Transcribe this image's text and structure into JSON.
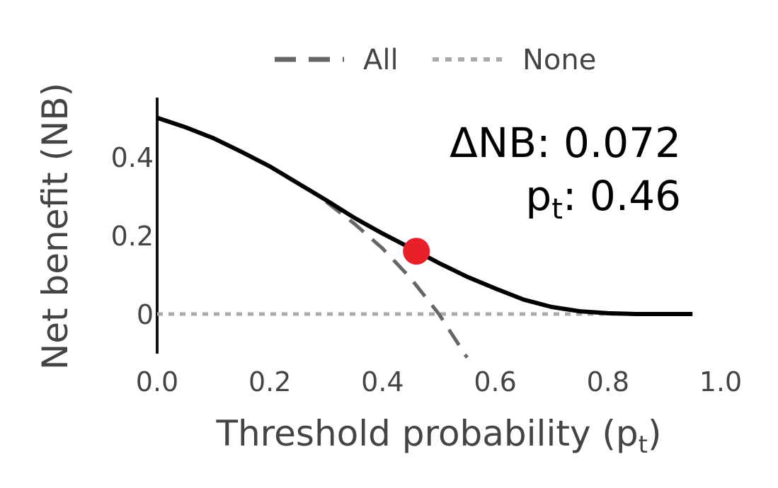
{
  "chart_data": {
    "type": "line",
    "xlabel": "Threshold probability (p",
    "xlabel_sub": "t",
    "xlabel_close": ")",
    "ylabel": "Net benefit (NB)",
    "xlim": [
      0,
      1.0
    ],
    "ylim": [
      -0.08,
      0.52
    ],
    "x_ticks": [
      0.0,
      0.2,
      0.4,
      0.6,
      0.8,
      1.0
    ],
    "x_tick_labels": [
      "0.0",
      "0.2",
      "0.4",
      "0.6",
      "0.8",
      "1.0"
    ],
    "y_ticks": [
      0,
      0.2,
      0.4
    ],
    "y_tick_labels": [
      "0",
      "0.2",
      "0.4"
    ],
    "legend": {
      "placement": "top-center",
      "items": [
        {
          "label": "All",
          "style": "dashed",
          "color": "#666666"
        },
        {
          "label": "None",
          "style": "dotted",
          "color": "#aaaaaa"
        }
      ]
    },
    "series": [
      {
        "name": "",
        "style": "solid",
        "color": "#000000",
        "x": [
          0.0,
          0.05,
          0.1,
          0.15,
          0.2,
          0.25,
          0.3,
          0.35,
          0.4,
          0.45,
          0.5,
          0.55,
          0.6,
          0.65,
          0.7,
          0.75,
          0.8,
          0.85,
          0.9,
          0.95
        ],
        "y": [
          0.5,
          0.476,
          0.448,
          0.413,
          0.376,
          0.333,
          0.29,
          0.245,
          0.205,
          0.168,
          0.13,
          0.095,
          0.065,
          0.037,
          0.018,
          0.007,
          0.002,
          0.0,
          0.0,
          0.0
        ]
      },
      {
        "name": "All",
        "style": "dashed",
        "color": "#666666",
        "x": [
          0.3,
          0.35,
          0.4,
          0.45,
          0.5,
          0.55
        ],
        "y": [
          0.286,
          0.23,
          0.167,
          0.091,
          0.0,
          -0.111
        ]
      },
      {
        "name": "None",
        "style": "dotted",
        "color": "#aaaaaa",
        "x": [
          0.0,
          0.95
        ],
        "y": [
          0.0,
          0.0
        ]
      }
    ],
    "highlight_point": {
      "x": 0.46,
      "y": 0.16,
      "color": "#e8202a"
    },
    "annotations": {
      "delta_nb_label": "ΔNB: 0.072",
      "pt_prefix": "p",
      "pt_sub": "t",
      "pt_value": ": 0.46"
    },
    "grid": false
  }
}
